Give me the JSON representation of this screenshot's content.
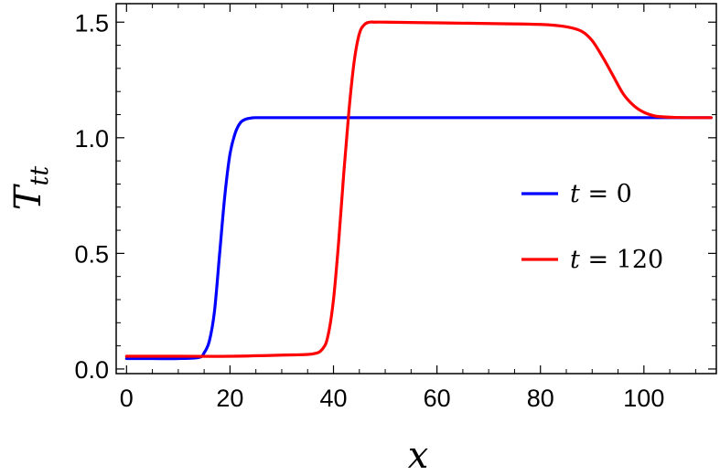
{
  "chart_data": {
    "type": "line",
    "xlabel": "x",
    "ylabel": "T",
    "ylabel_sub": "tt",
    "xlim": [
      -2,
      114
    ],
    "ylim": [
      -0.02,
      1.58
    ],
    "x_ticks": [
      0,
      20,
      40,
      60,
      80,
      100
    ],
    "x_tick_labels": [
      "0",
      "20",
      "40",
      "60",
      "80",
      "100"
    ],
    "y_ticks": [
      0.0,
      0.5,
      1.0,
      1.5
    ],
    "y_tick_labels": [
      "0.0",
      "0.5",
      "1.0",
      "1.5"
    ],
    "grid": false,
    "legend_position": "right",
    "series": [
      {
        "name": "t = 0",
        "name_var": "t",
        "name_rest": " = 0",
        "color": "#0000ff",
        "x": [
          0,
          5,
          10,
          14,
          15,
          16,
          17,
          18,
          19,
          20,
          21,
          22,
          23,
          24,
          25,
          30,
          40,
          60,
          80,
          100,
          113
        ],
        "y": [
          0.045,
          0.045,
          0.045,
          0.05,
          0.07,
          0.12,
          0.25,
          0.5,
          0.75,
          0.93,
          1.02,
          1.065,
          1.08,
          1.085,
          1.087,
          1.087,
          1.087,
          1.087,
          1.087,
          1.087,
          1.087
        ]
      },
      {
        "name": "t = 120",
        "name_var": "t",
        "name_rest": " = 120",
        "color": "#ff0000",
        "x": [
          0,
          10,
          20,
          30,
          36,
          38,
          39,
          40,
          41,
          42,
          43,
          44,
          45,
          46,
          47,
          48,
          50,
          60,
          70,
          80,
          85,
          88,
          90,
          92,
          94,
          96,
          98,
          100,
          102,
          104,
          106,
          108,
          110,
          113
        ],
        "y": [
          0.055,
          0.055,
          0.055,
          0.06,
          0.065,
          0.09,
          0.15,
          0.3,
          0.55,
          0.85,
          1.12,
          1.33,
          1.45,
          1.49,
          1.5,
          1.5,
          1.5,
          1.497,
          1.494,
          1.49,
          1.48,
          1.46,
          1.42,
          1.35,
          1.27,
          1.19,
          1.14,
          1.11,
          1.095,
          1.09,
          1.088,
          1.087,
          1.087,
          1.087
        ]
      }
    ]
  }
}
